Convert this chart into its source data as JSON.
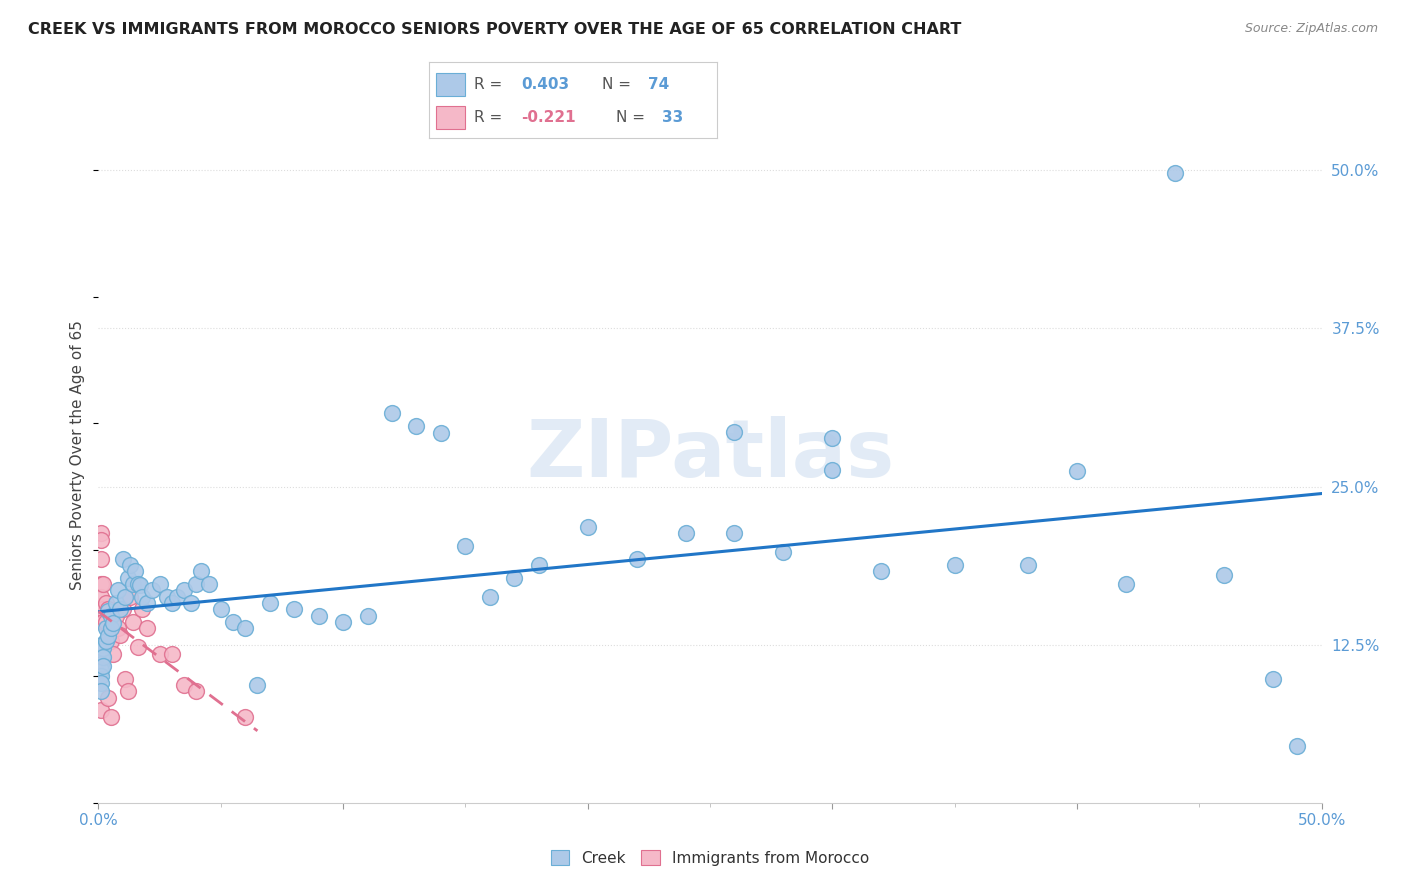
{
  "title": "CREEK VS IMMIGRANTS FROM MOROCCO SENIORS POVERTY OVER THE AGE OF 65 CORRELATION CHART",
  "source": "Source: ZipAtlas.com",
  "ylabel": "Seniors Poverty Over the Age of 65",
  "xlim": [
    0.0,
    0.5
  ],
  "ylim": [
    0.0,
    0.55
  ],
  "creek_R": 0.403,
  "creek_N": 74,
  "morocco_R": -0.221,
  "morocco_N": 33,
  "creek_color": "#adc9e8",
  "creek_edge_color": "#6aaed6",
  "morocco_color": "#f5b8c8",
  "morocco_edge_color": "#e07090",
  "creek_line_color": "#2176c7",
  "morocco_line_color": "#e07090",
  "watermark_color": "#d0dff0",
  "background_color": "#ffffff",
  "grid_color": "#dddddd",
  "label_color": "#5b9bd5",
  "creek_x": [
    0.001,
    0.001,
    0.001,
    0.001,
    0.001,
    0.001,
    0.001,
    0.001,
    0.002,
    0.002,
    0.002,
    0.003,
    0.003,
    0.004,
    0.004,
    0.005,
    0.005,
    0.006,
    0.007,
    0.008,
    0.009,
    0.01,
    0.011,
    0.012,
    0.013,
    0.014,
    0.015,
    0.016,
    0.017,
    0.018,
    0.02,
    0.022,
    0.025,
    0.028,
    0.03,
    0.032,
    0.035,
    0.038,
    0.04,
    0.042,
    0.045,
    0.05,
    0.055,
    0.06,
    0.065,
    0.07,
    0.08,
    0.09,
    0.1,
    0.11,
    0.12,
    0.13,
    0.14,
    0.15,
    0.16,
    0.17,
    0.18,
    0.2,
    0.22,
    0.24,
    0.26,
    0.28,
    0.3,
    0.32,
    0.35,
    0.38,
    0.4,
    0.42,
    0.44,
    0.46,
    0.48,
    0.49,
    0.3,
    0.26
  ],
  "creek_y": [
    0.125,
    0.12,
    0.115,
    0.11,
    0.105,
    0.1,
    0.095,
    0.088,
    0.122,
    0.115,
    0.108,
    0.138,
    0.128,
    0.152,
    0.132,
    0.148,
    0.138,
    0.142,
    0.158,
    0.168,
    0.153,
    0.193,
    0.163,
    0.178,
    0.188,
    0.173,
    0.183,
    0.173,
    0.172,
    0.163,
    0.158,
    0.168,
    0.173,
    0.163,
    0.158,
    0.163,
    0.168,
    0.158,
    0.173,
    0.183,
    0.173,
    0.153,
    0.143,
    0.138,
    0.093,
    0.158,
    0.153,
    0.148,
    0.143,
    0.148,
    0.308,
    0.298,
    0.292,
    0.203,
    0.163,
    0.178,
    0.188,
    0.218,
    0.193,
    0.213,
    0.213,
    0.198,
    0.263,
    0.183,
    0.188,
    0.188,
    0.262,
    0.173,
    0.498,
    0.18,
    0.098,
    0.045,
    0.288,
    0.293
  ],
  "morocco_x": [
    0.001,
    0.001,
    0.001,
    0.001,
    0.001,
    0.001,
    0.001,
    0.002,
    0.002,
    0.002,
    0.003,
    0.003,
    0.004,
    0.004,
    0.005,
    0.005,
    0.006,
    0.007,
    0.008,
    0.009,
    0.01,
    0.011,
    0.012,
    0.013,
    0.014,
    0.016,
    0.018,
    0.02,
    0.025,
    0.03,
    0.035,
    0.04,
    0.06
  ],
  "morocco_y": [
    0.213,
    0.208,
    0.193,
    0.173,
    0.163,
    0.148,
    0.073,
    0.173,
    0.153,
    0.143,
    0.158,
    0.143,
    0.153,
    0.083,
    0.128,
    0.068,
    0.118,
    0.148,
    0.138,
    0.133,
    0.153,
    0.098,
    0.088,
    0.163,
    0.143,
    0.123,
    0.153,
    0.138,
    0.118,
    0.118,
    0.093,
    0.088,
    0.068
  ]
}
